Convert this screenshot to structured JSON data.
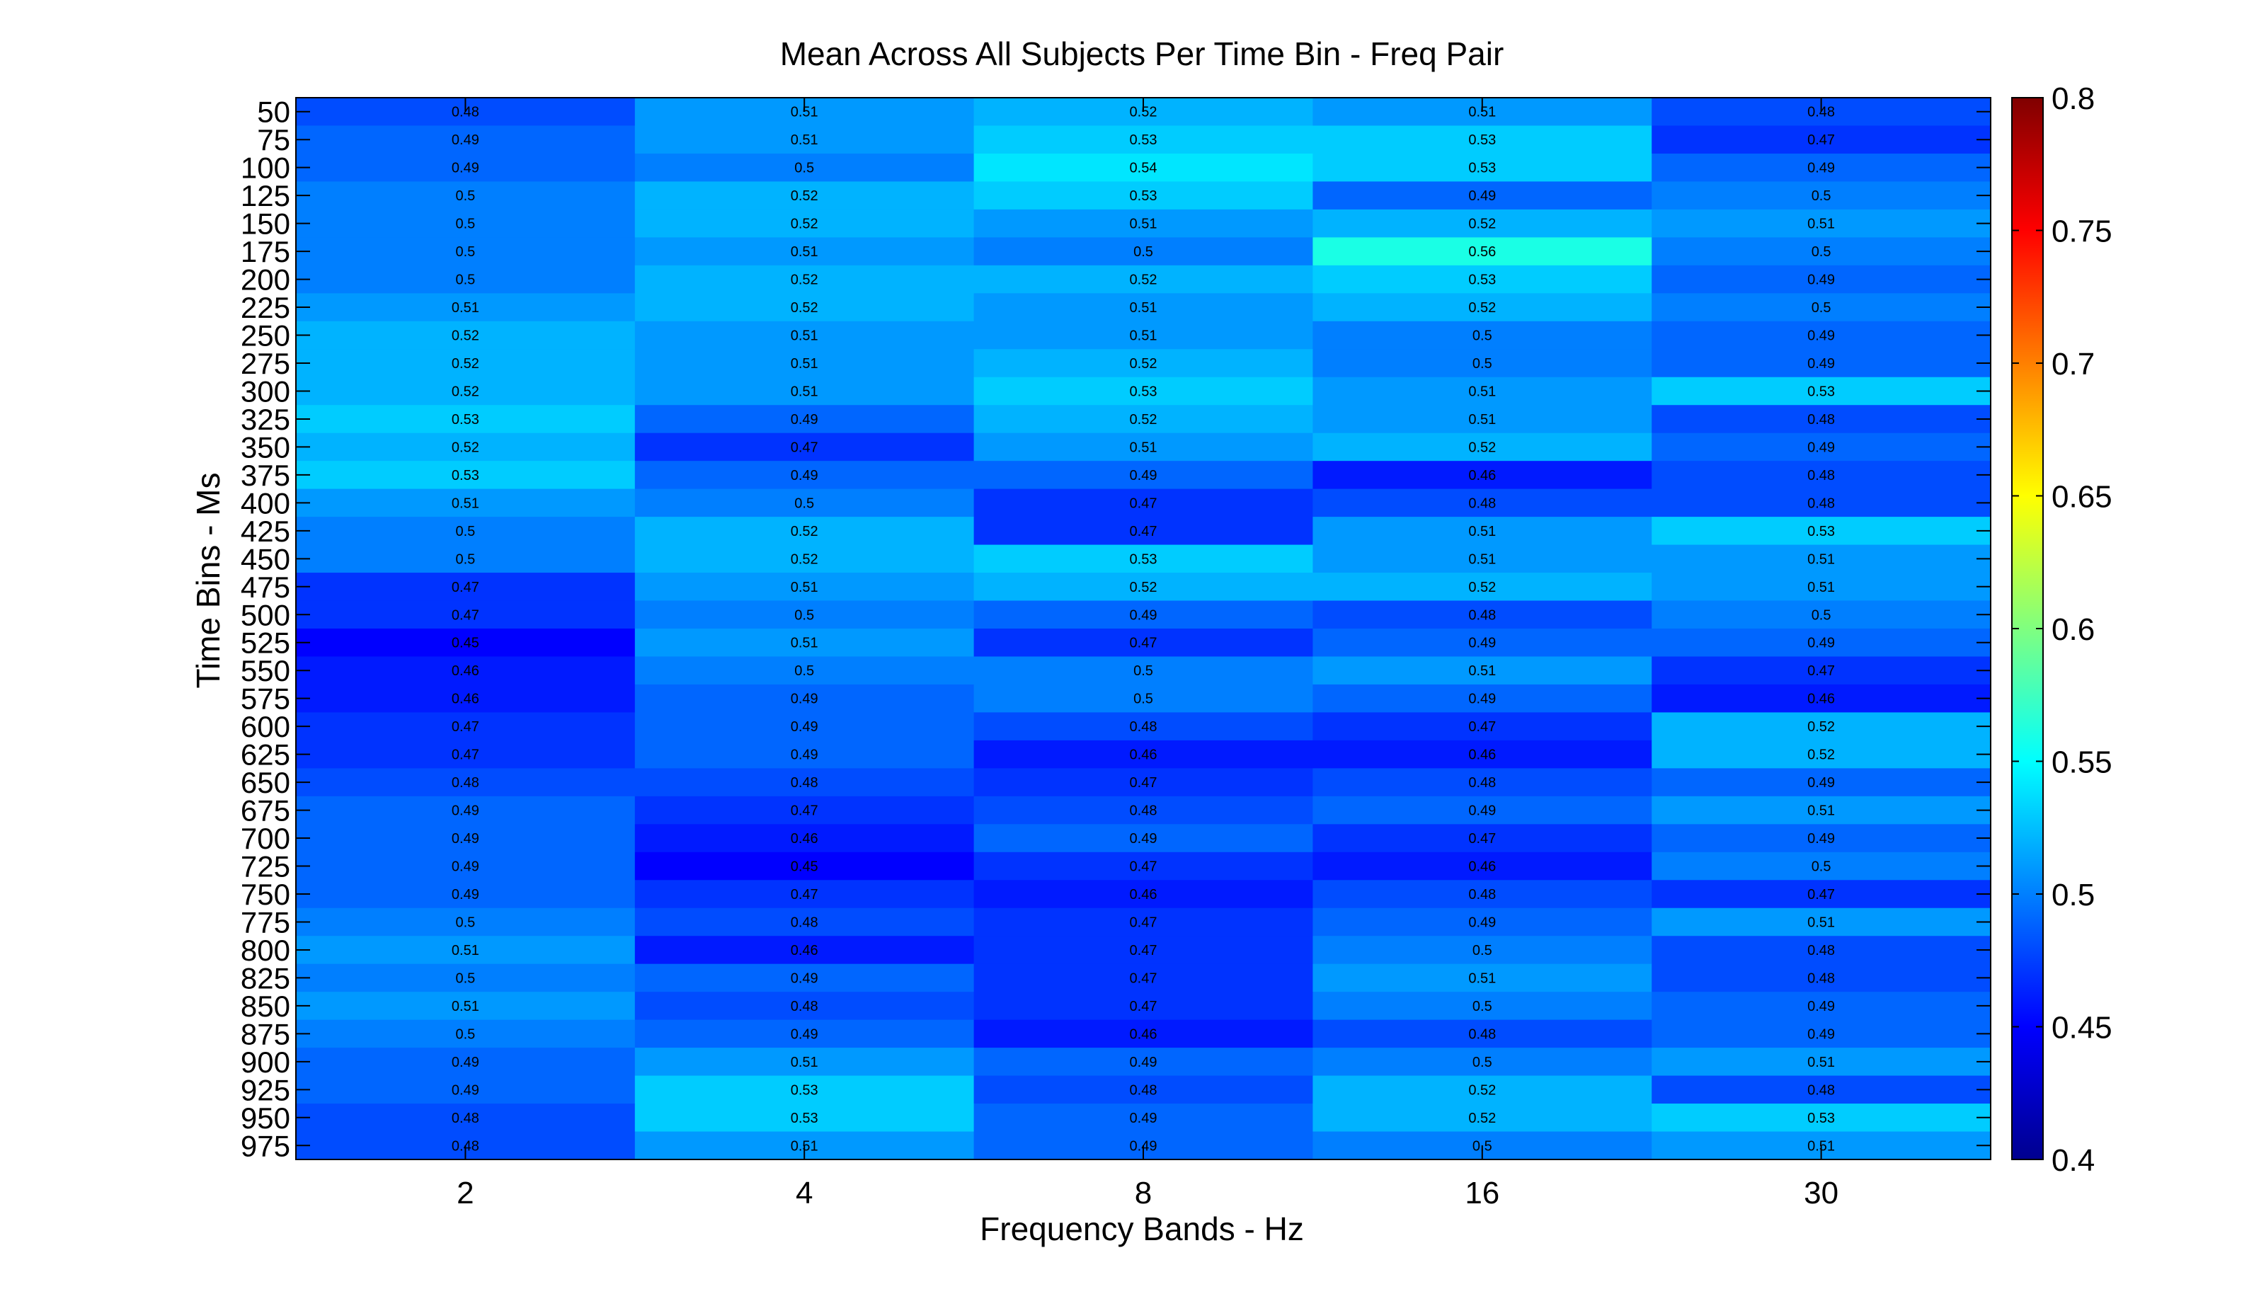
{
  "chart_data": {
    "type": "heatmap",
    "title": "Mean Across All Subjects Per Time Bin - Freq Pair",
    "xlabel": "Frequency Bands - Hz",
    "ylabel": "Time Bins - Ms",
    "x_categories": [
      "2",
      "4",
      "8",
      "16",
      "30"
    ],
    "y_categories": [
      "50",
      "75",
      "100",
      "125",
      "150",
      "175",
      "200",
      "225",
      "250",
      "275",
      "300",
      "325",
      "350",
      "375",
      "400",
      "425",
      "450",
      "475",
      "500",
      "525",
      "550",
      "575",
      "600",
      "625",
      "650",
      "675",
      "700",
      "725",
      "750",
      "775",
      "800",
      "825",
      "850",
      "875",
      "900",
      "925",
      "950",
      "975"
    ],
    "values": [
      [
        0.48,
        0.51,
        0.52,
        0.51,
        0.48
      ],
      [
        0.49,
        0.51,
        0.53,
        0.53,
        0.47
      ],
      [
        0.49,
        0.5,
        0.54,
        0.53,
        0.49
      ],
      [
        0.5,
        0.52,
        0.53,
        0.49,
        0.5
      ],
      [
        0.5,
        0.52,
        0.51,
        0.52,
        0.51
      ],
      [
        0.5,
        0.51,
        0.5,
        0.56,
        0.5
      ],
      [
        0.5,
        0.52,
        0.52,
        0.53,
        0.49
      ],
      [
        0.51,
        0.52,
        0.51,
        0.52,
        0.5
      ],
      [
        0.52,
        0.51,
        0.51,
        0.5,
        0.49
      ],
      [
        0.52,
        0.51,
        0.52,
        0.5,
        0.49
      ],
      [
        0.52,
        0.51,
        0.53,
        0.51,
        0.53
      ],
      [
        0.53,
        0.49,
        0.52,
        0.51,
        0.48
      ],
      [
        0.52,
        0.47,
        0.51,
        0.52,
        0.49
      ],
      [
        0.53,
        0.49,
        0.49,
        0.46,
        0.48
      ],
      [
        0.51,
        0.5,
        0.47,
        0.48,
        0.48
      ],
      [
        0.5,
        0.52,
        0.47,
        0.51,
        0.53
      ],
      [
        0.5,
        0.52,
        0.53,
        0.51,
        0.51
      ],
      [
        0.47,
        0.51,
        0.52,
        0.52,
        0.51
      ],
      [
        0.47,
        0.5,
        0.49,
        0.48,
        0.5
      ],
      [
        0.45,
        0.51,
        0.47,
        0.49,
        0.49
      ],
      [
        0.46,
        0.5,
        0.5,
        0.51,
        0.47
      ],
      [
        0.46,
        0.49,
        0.5,
        0.49,
        0.46
      ],
      [
        0.47,
        0.49,
        0.48,
        0.47,
        0.52
      ],
      [
        0.47,
        0.49,
        0.46,
        0.46,
        0.52
      ],
      [
        0.48,
        0.48,
        0.47,
        0.48,
        0.49
      ],
      [
        0.49,
        0.47,
        0.48,
        0.49,
        0.51
      ],
      [
        0.49,
        0.46,
        0.49,
        0.47,
        0.49
      ],
      [
        0.49,
        0.45,
        0.47,
        0.46,
        0.5
      ],
      [
        0.49,
        0.47,
        0.46,
        0.48,
        0.47
      ],
      [
        0.5,
        0.48,
        0.47,
        0.49,
        0.51
      ],
      [
        0.51,
        0.46,
        0.47,
        0.5,
        0.48
      ],
      [
        0.5,
        0.49,
        0.47,
        0.51,
        0.48
      ],
      [
        0.51,
        0.48,
        0.47,
        0.5,
        0.49
      ],
      [
        0.5,
        0.49,
        0.46,
        0.48,
        0.49
      ],
      [
        0.49,
        0.51,
        0.49,
        0.5,
        0.51
      ],
      [
        0.49,
        0.53,
        0.48,
        0.52,
        0.48
      ],
      [
        0.48,
        0.53,
        0.49,
        0.52,
        0.53
      ],
      [
        0.48,
        0.51,
        0.49,
        0.5,
        0.51
      ]
    ],
    "colorbar": {
      "min": 0.4,
      "max": 0.8,
      "ticks": [
        "0.4",
        "0.45",
        "0.5",
        "0.55",
        "0.6",
        "0.65",
        "0.7",
        "0.75",
        "0.8"
      ],
      "colormap": "jet"
    },
    "grid": false,
    "legend": "colorbar-right"
  }
}
